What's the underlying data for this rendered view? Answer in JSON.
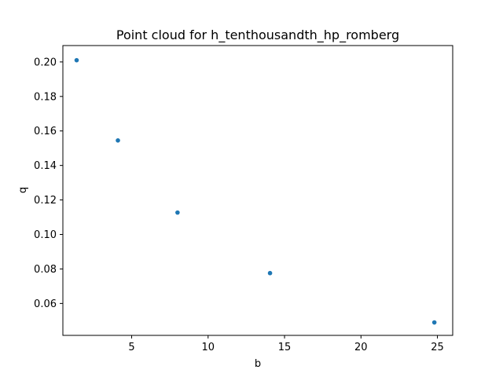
{
  "chart_data": {
    "type": "scatter",
    "title": "Point cloud for h_tenthousandth_hp_romberg",
    "xlabel": "b",
    "ylabel": "q",
    "xlim": [
      0.5,
      26.0
    ],
    "ylim": [
      0.0415,
      0.2095
    ],
    "xticks": [
      5,
      10,
      15,
      20,
      25
    ],
    "xtick_labels": [
      "5",
      "10",
      "15",
      "20",
      "25"
    ],
    "yticks": [
      0.06,
      0.08,
      0.1,
      0.12,
      0.14,
      0.16,
      0.18,
      0.2
    ],
    "ytick_labels": [
      "0.06",
      "0.08",
      "0.10",
      "0.12",
      "0.14",
      "0.16",
      "0.18",
      "0.20"
    ],
    "grid": false,
    "marker_color": "#1f77b4",
    "points": [
      {
        "x": 1.4,
        "y": 0.201
      },
      {
        "x": 4.1,
        "y": 0.1545
      },
      {
        "x": 8.0,
        "y": 0.1127
      },
      {
        "x": 14.05,
        "y": 0.0776
      },
      {
        "x": 24.8,
        "y": 0.049
      }
    ]
  }
}
